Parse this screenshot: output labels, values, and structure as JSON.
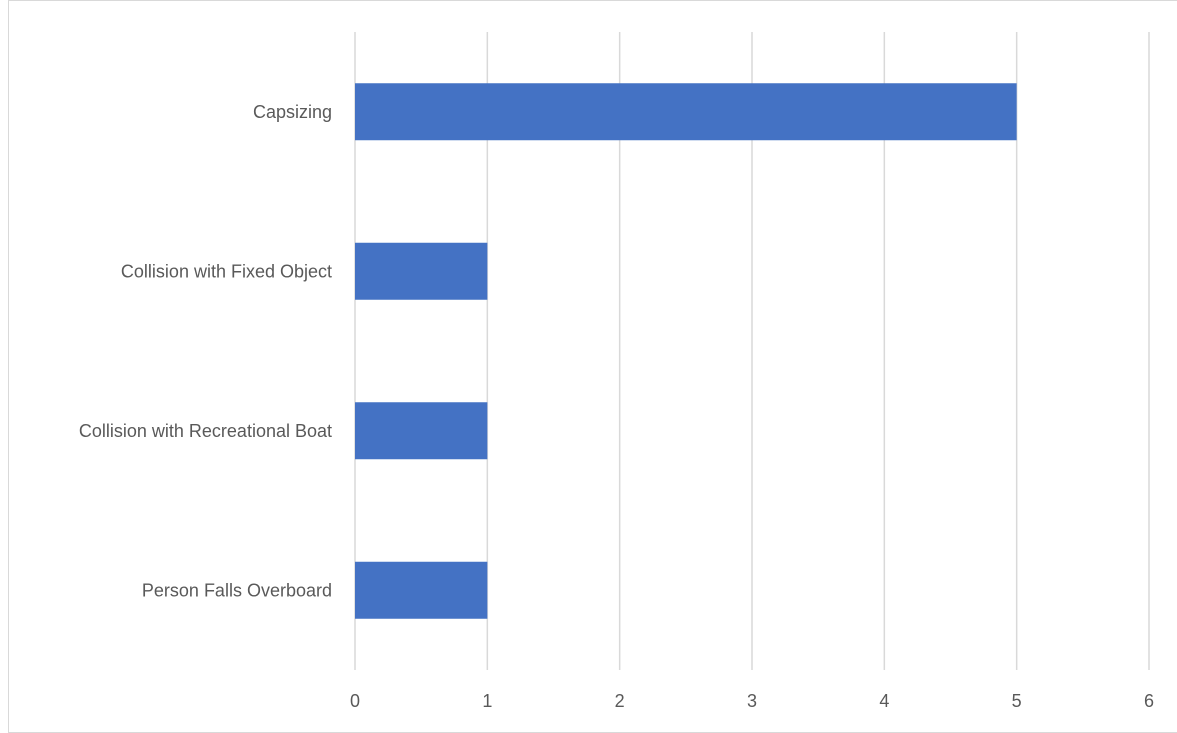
{
  "chart_data": {
    "type": "bar",
    "orientation": "horizontal",
    "categories": [
      "Capsizing",
      "Collision with Fixed Object",
      "Collision with Recreational Boat",
      "Person Falls Overboard"
    ],
    "values": [
      5,
      1,
      1,
      1
    ],
    "xlim": [
      0,
      6
    ],
    "xticks": [
      "0",
      "1",
      "2",
      "3",
      "4",
      "5",
      "6"
    ],
    "title": "",
    "xlabel": "",
    "ylabel": "",
    "grid": "vertical",
    "legend": "none",
    "colors": {
      "bar": "#4472C4",
      "grid": "#d9d9d9",
      "text": "#595959"
    }
  }
}
